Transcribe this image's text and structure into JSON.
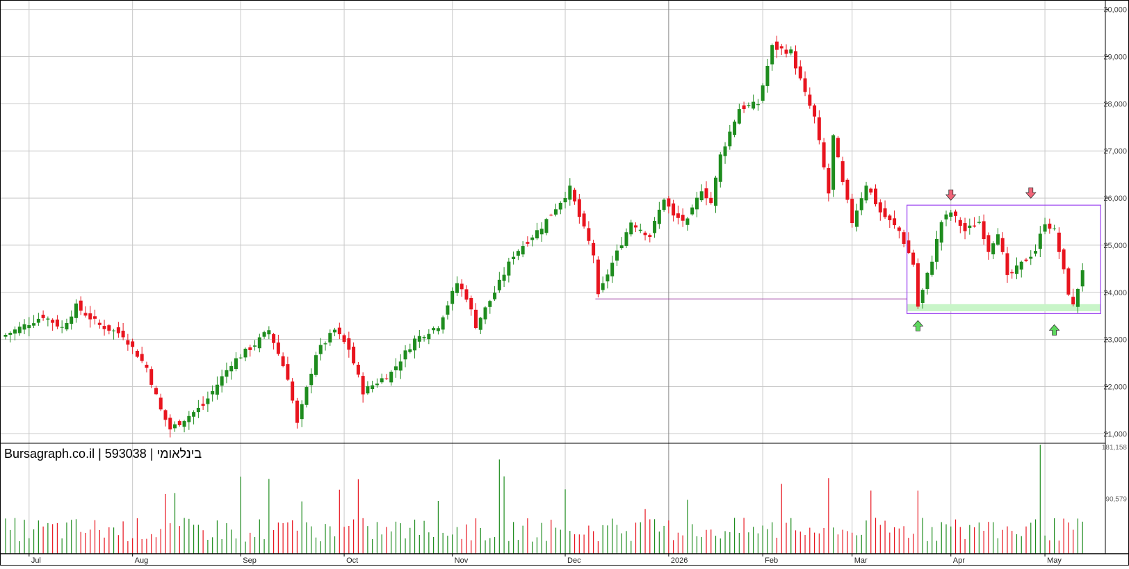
{
  "chart_data": [
    {
      "type": "candlestick",
      "title": "Bursagraph.co.il | 593038 | בינלאומי",
      "x_tick_labels": [
        "Jul",
        "Aug",
        "Sep",
        "Oct",
        "Nov",
        "Dec",
        "2026",
        "Feb",
        "Mar",
        "Apr",
        "May"
      ],
      "y_tick_labels": [
        "21,000",
        "22,000",
        "23,000",
        "24,000",
        "25,000",
        "26,000",
        "27,000",
        "28,000",
        "29,000",
        "30,000"
      ],
      "ylim": [
        20800,
        30200
      ],
      "grid": true,
      "up_color": "#1e8c1e",
      "down_color": "#e8141e",
      "anchor_closes": [
        [
          0,
          23100
        ],
        [
          8,
          23500
        ],
        [
          12,
          23250
        ],
        [
          15,
          23700
        ],
        [
          20,
          23300
        ],
        [
          25,
          23100
        ],
        [
          30,
          22400
        ],
        [
          33,
          21500
        ],
        [
          35,
          21100
        ],
        [
          42,
          21600
        ],
        [
          48,
          22500
        ],
        [
          53,
          22900
        ],
        [
          56,
          23200
        ],
        [
          60,
          22200
        ],
        [
          62,
          21200
        ],
        [
          66,
          22700
        ],
        [
          70,
          23200
        ],
        [
          73,
          22800
        ],
        [
          76,
          21900
        ],
        [
          82,
          22300
        ],
        [
          87,
          23000
        ],
        [
          92,
          23300
        ],
        [
          96,
          24200
        ],
        [
          98,
          23900
        ],
        [
          100,
          23300
        ],
        [
          104,
          24000
        ],
        [
          108,
          24800
        ],
        [
          114,
          25400
        ],
        [
          120,
          26200
        ],
        [
          122,
          25600
        ],
        [
          125,
          24800
        ],
        [
          126,
          23900
        ],
        [
          128,
          24400
        ],
        [
          133,
          25500
        ],
        [
          137,
          25200
        ],
        [
          140,
          26000
        ],
        [
          142,
          25600
        ],
        [
          145,
          25500
        ],
        [
          148,
          26200
        ],
        [
          150,
          25900
        ],
        [
          152,
          26900
        ],
        [
          156,
          27900
        ],
        [
          160,
          28000
        ],
        [
          163,
          29200
        ],
        [
          167,
          29100
        ],
        [
          170,
          28200
        ],
        [
          172,
          27700
        ],
        [
          175,
          26100
        ],
        [
          176,
          27300
        ],
        [
          178,
          26300
        ],
        [
          180,
          25500
        ],
        [
          183,
          26300
        ],
        [
          186,
          25700
        ],
        [
          190,
          25300
        ],
        [
          193,
          24600
        ],
        [
          194,
          23700
        ],
        [
          197,
          24700
        ],
        [
          199,
          25500
        ],
        [
          201,
          25700
        ],
        [
          204,
          25300
        ],
        [
          207,
          25500
        ],
        [
          209,
          24900
        ],
        [
          211,
          25300
        ],
        [
          213,
          24300
        ],
        [
          216,
          24600
        ],
        [
          219,
          24900
        ],
        [
          221,
          25500
        ],
        [
          223,
          25300
        ],
        [
          226,
          24000
        ],
        [
          227,
          23700
        ],
        [
          229,
          24500
        ]
      ],
      "volume_max": 181158,
      "volume_tick_labels": [
        "181,158",
        "90,579"
      ]
    }
  ],
  "annotations": {
    "range_box": {
      "y_top": 25850,
      "y_bottom": 23550
    },
    "support_zone": {
      "y_top": 23750,
      "y_bottom": 23600,
      "color": "#c8f5c8"
    },
    "support_line": {
      "y": 23860
    },
    "arrows": [
      {
        "dir": "down",
        "color": "#f06478"
      },
      {
        "dir": "down",
        "color": "#f06478"
      },
      {
        "dir": "up",
        "color": "#5ed85e"
      },
      {
        "dir": "up",
        "color": "#5ed85e"
      }
    ],
    "box_color": "#9b40f0",
    "line_color": "#9c3aa0"
  }
}
